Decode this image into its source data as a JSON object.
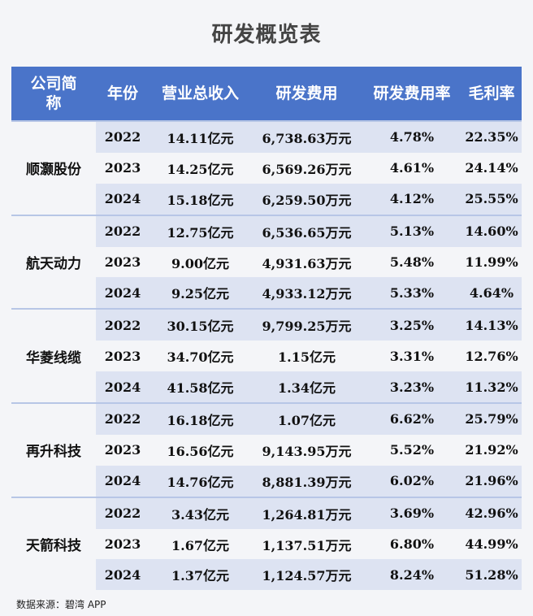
{
  "title": "研发概览表",
  "source": "数据来源：碧湾 APP",
  "colors": {
    "header_bg": "#4a74c9",
    "header_text": "#ffffff",
    "row_shade": "#dde3f2",
    "row_plain": "#f4f5f8"
  },
  "chart_data": {
    "type": "table",
    "title": "研发概览表",
    "columns": [
      "公司简称",
      "年份",
      "营业总收入",
      "研发费用",
      "研发费用率",
      "毛利率"
    ],
    "groups": [
      {
        "company": "顺灏股份",
        "rows": [
          {
            "year": "2022",
            "revenue": "14.11亿元",
            "rd": "6,738.63万元",
            "rd_rate": "4.78%",
            "margin": "22.35%"
          },
          {
            "year": "2023",
            "revenue": "14.25亿元",
            "rd": "6,569.26万元",
            "rd_rate": "4.61%",
            "margin": "24.14%"
          },
          {
            "year": "2024",
            "revenue": "15.18亿元",
            "rd": "6,259.50万元",
            "rd_rate": "4.12%",
            "margin": "25.55%"
          }
        ]
      },
      {
        "company": "航天动力",
        "rows": [
          {
            "year": "2022",
            "revenue": "12.75亿元",
            "rd": "6,536.65万元",
            "rd_rate": "5.13%",
            "margin": "14.60%"
          },
          {
            "year": "2023",
            "revenue": "9.00亿元",
            "rd": "4,931.63万元",
            "rd_rate": "5.48%",
            "margin": "11.99%"
          },
          {
            "year": "2024",
            "revenue": "9.25亿元",
            "rd": "4,933.12万元",
            "rd_rate": "5.33%",
            "margin": "4.64%"
          }
        ]
      },
      {
        "company": "华菱线缆",
        "rows": [
          {
            "year": "2022",
            "revenue": "30.15亿元",
            "rd": "9,799.25万元",
            "rd_rate": "3.25%",
            "margin": "14.13%"
          },
          {
            "year": "2023",
            "revenue": "34.70亿元",
            "rd": "1.15亿元",
            "rd_rate": "3.31%",
            "margin": "12.76%"
          },
          {
            "year": "2024",
            "revenue": "41.58亿元",
            "rd": "1.34亿元",
            "rd_rate": "3.23%",
            "margin": "11.32%"
          }
        ]
      },
      {
        "company": "再升科技",
        "rows": [
          {
            "year": "2022",
            "revenue": "16.18亿元",
            "rd": "1.07亿元",
            "rd_rate": "6.62%",
            "margin": "25.79%"
          },
          {
            "year": "2023",
            "revenue": "16.56亿元",
            "rd": "9,143.95万元",
            "rd_rate": "5.52%",
            "margin": "21.92%"
          },
          {
            "year": "2024",
            "revenue": "14.76亿元",
            "rd": "8,881.39万元",
            "rd_rate": "6.02%",
            "margin": "21.96%"
          }
        ]
      },
      {
        "company": "天箭科技",
        "rows": [
          {
            "year": "2022",
            "revenue": "3.43亿元",
            "rd": "1,264.81万元",
            "rd_rate": "3.69%",
            "margin": "42.96%"
          },
          {
            "year": "2023",
            "revenue": "1.67亿元",
            "rd": "1,137.51万元",
            "rd_rate": "6.80%",
            "margin": "44.99%"
          },
          {
            "year": "2024",
            "revenue": "1.37亿元",
            "rd": "1,124.57万元",
            "rd_rate": "8.24%",
            "margin": "51.28%"
          }
        ]
      }
    ]
  }
}
